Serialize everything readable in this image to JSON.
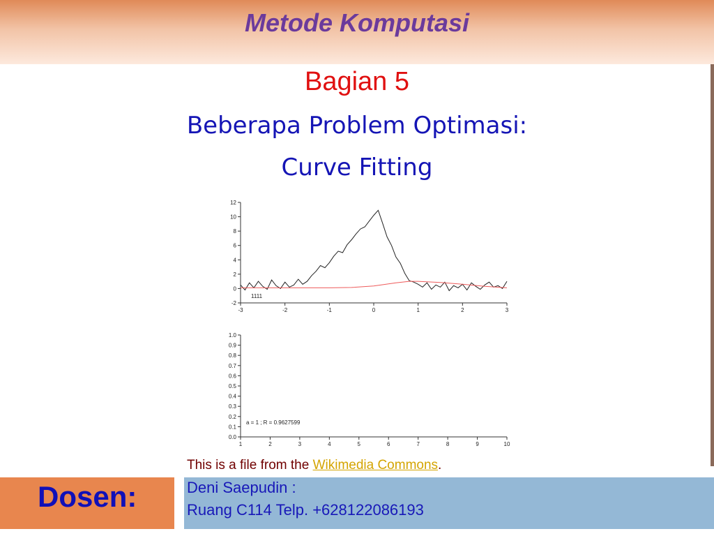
{
  "slide": {
    "course_title": "Metode Komputasi",
    "chapter": "Bagian 5",
    "topic_line1": "Beberapa Problem Optimasi:",
    "topic_line2": "Curve Fitting"
  },
  "credit": {
    "prefix": "This is a file from the ",
    "link": "Wikimedia Commons",
    "suffix": "."
  },
  "footer": {
    "dosen_label": "Dosen:",
    "lecturer_name": "Deni Saepudin :",
    "lecturer_room": "Ruang C114 Telp. +628122086193"
  },
  "colors": {
    "data_line": "#222222",
    "fit_line": "#ee5a5a",
    "axis": "#333333"
  },
  "chart_data": [
    {
      "type": "line",
      "title": "",
      "xlabel": "",
      "ylabel": "",
      "xlim": [
        -3,
        3
      ],
      "ylim": [
        -2,
        12
      ],
      "x_ticks": [
        -3,
        -2,
        -1,
        0,
        1,
        2,
        3
      ],
      "y_ticks": [
        -2,
        0,
        2,
        4,
        6,
        8,
        10,
        12
      ],
      "annotation": "1111",
      "grid": false,
      "series": [
        {
          "x": [
            -3.0,
            -2.9,
            -2.8,
            -2.7,
            -2.6,
            -2.5,
            -2.4,
            -2.3,
            -2.2,
            -2.1,
            -2.0,
            -1.9,
            -1.8,
            -1.7,
            -1.6,
            -1.5,
            -1.4,
            -1.3,
            -1.2,
            -1.1,
            -1.0,
            -0.9,
            -0.8,
            -0.7,
            -0.6,
            -0.5,
            -0.4,
            -0.3,
            -0.2,
            -0.1,
            0.0,
            0.1,
            0.2,
            0.3,
            0.4,
            0.5,
            0.6,
            0.7,
            0.8,
            0.9,
            1.0,
            1.1,
            1.2,
            1.3,
            1.4,
            1.5,
            1.6,
            1.7,
            1.8,
            1.9,
            2.0,
            2.1,
            2.2,
            2.3,
            2.4,
            2.5,
            2.6,
            2.7,
            2.8,
            2.9,
            3.0
          ],
          "y": [
            0.5,
            -0.2,
            0.8,
            0.1,
            1.0,
            0.3,
            -0.1,
            1.2,
            0.4,
            0.0,
            0.9,
            0.2,
            0.5,
            1.3,
            0.6,
            1.0,
            1.8,
            2.4,
            3.2,
            2.9,
            3.6,
            4.5,
            5.2,
            5.0,
            6.1,
            6.8,
            7.6,
            8.3,
            8.6,
            9.4,
            10.2,
            10.9,
            9.1,
            7.2,
            6.0,
            4.4,
            3.5,
            2.1,
            1.1,
            0.9,
            0.6,
            0.2,
            0.8,
            -0.1,
            0.5,
            0.2,
            0.9,
            -0.3,
            0.4,
            0.1,
            0.6,
            -0.2,
            0.8,
            0.3,
            -0.1,
            0.5,
            0.9,
            0.2,
            0.4,
            0.0,
            1.0
          ]
        },
        {
          "x": [
            -3.0,
            -2.5,
            -2.0,
            -1.5,
            -1.0,
            -0.5,
            0.0,
            0.5,
            0.8,
            1.0,
            1.5,
            2.0,
            2.5,
            3.0
          ],
          "y": [
            0.1,
            0.1,
            0.1,
            0.1,
            0.1,
            0.15,
            0.35,
            0.8,
            1.0,
            1.0,
            0.85,
            0.6,
            0.3,
            0.1
          ]
        }
      ]
    },
    {
      "type": "line",
      "title": "",
      "xlabel": "",
      "ylabel": "",
      "xlim": [
        1,
        10
      ],
      "ylim": [
        0,
        1
      ],
      "x_ticks": [
        1,
        2,
        3,
        4,
        5,
        6,
        7,
        8,
        9,
        10
      ],
      "y_ticks": [
        "0.0",
        "0.1",
        "0.2",
        "0.3",
        "0.4",
        "0.5",
        "0.6",
        "0.7",
        "0.8",
        "0.9",
        "1.0"
      ],
      "annotation": "a = 1 ; R = 0.9627599",
      "grid": false,
      "series": []
    }
  ]
}
